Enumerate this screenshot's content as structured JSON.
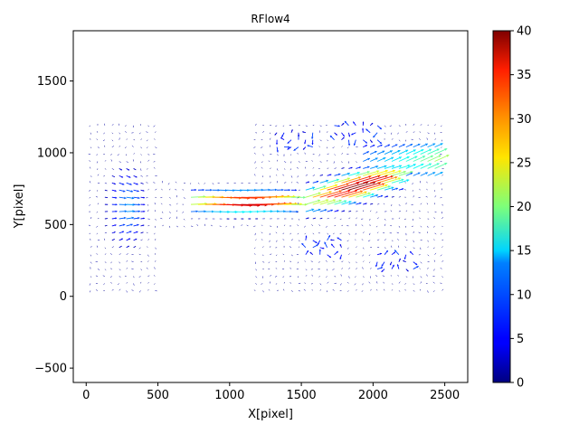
{
  "chart_data": {
    "type": "quiver",
    "title": "RFlow4",
    "xlabel": "X[pixel]",
    "ylabel": "Y[pixel]",
    "xlim": [
      -90,
      2660
    ],
    "ylim": [
      -600,
      1850
    ],
    "xticks": [
      0,
      500,
      1000,
      1500,
      2000,
      2500
    ],
    "xtick_labels": [
      "0",
      "500",
      "1000",
      "1500",
      "2000",
      "2500"
    ],
    "yticks": [
      -500,
      0,
      500,
      1000,
      1500
    ],
    "ytick_labels": [
      "−500",
      "0",
      "500",
      "1000",
      "1500"
    ],
    "colorbar": {
      "colormap": "jet",
      "min": 0,
      "max": 40,
      "ticks": [
        0,
        5,
        10,
        15,
        20,
        25,
        30,
        35,
        40
      ],
      "tick_labels": [
        "0",
        "5",
        "10",
        "15",
        "20",
        "25",
        "30",
        "35",
        "40"
      ]
    },
    "grid": false,
    "field": {
      "x_range": [
        30,
        2500
      ],
      "y_range": [
        40,
        1200
      ],
      "step": 50,
      "features": [
        {
          "kind": "left-jet",
          "cx": 260,
          "cy": 620,
          "x_extent": [
            100,
            480
          ],
          "y_extent": [
            200,
            1000
          ],
          "peak": 16
        },
        {
          "kind": "center-streak",
          "x_extent": [
            700,
            1450
          ],
          "cy": 660,
          "half_width": 90,
          "peak": 40
        },
        {
          "kind": "right-streak",
          "x_extent": [
            1500,
            2200
          ],
          "cy_start": 660,
          "cy_end": 850,
          "half_width": 110,
          "peak": 40
        },
        {
          "kind": "right-upper-band",
          "x_extent": [
            1900,
            2450
          ],
          "y_extent": [
            800,
            1080
          ],
          "peak": 22
        },
        {
          "kind": "sparse-patches",
          "regions": [
            [
              1300,
              1600,
              1000,
              1150
            ],
            [
              1700,
              2050,
              1050,
              1200
            ],
            [
              2000,
              2300,
              150,
              300
            ],
            [
              1500,
              1800,
              250,
              400
            ]
          ],
          "peak": 8
        }
      ]
    }
  }
}
